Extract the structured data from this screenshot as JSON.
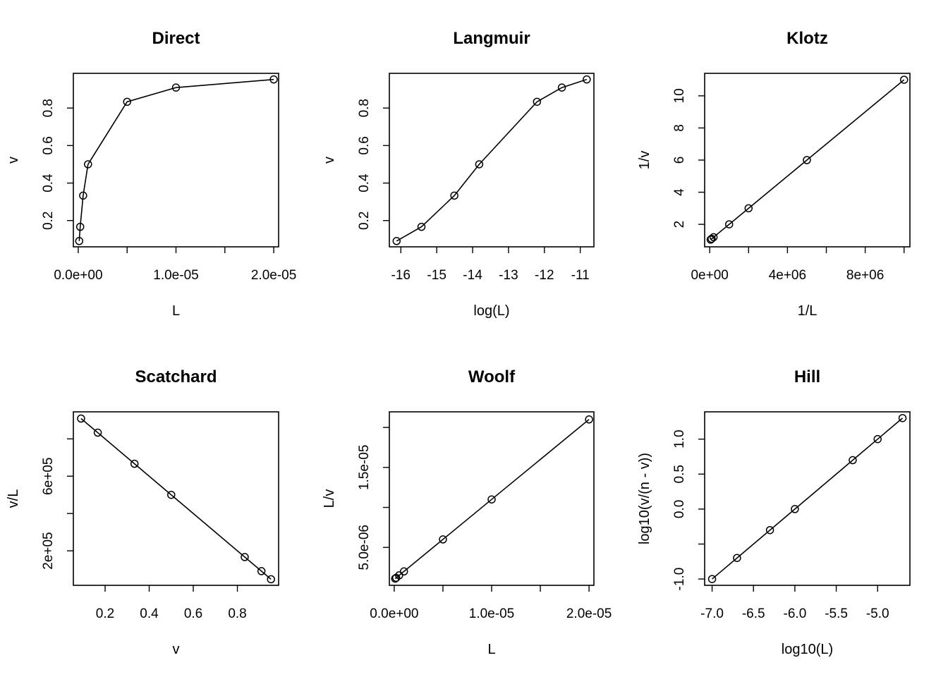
{
  "chart_data": [
    {
      "type": "line",
      "title": "Direct",
      "xlabel": "L",
      "ylabel": "v",
      "xlim": [
        -5e-07,
        2.05e-05
      ],
      "ylim": [
        0.06,
        0.985
      ],
      "xticks": [
        {
          "v": 0,
          "label": "0.0e+00"
        },
        {
          "v": 5e-06,
          "label": ""
        },
        {
          "v": 1e-05,
          "label": "1.0e-05"
        },
        {
          "v": 1.5e-05,
          "label": ""
        },
        {
          "v": 2e-05,
          "label": "2.0e-05"
        }
      ],
      "yticks": [
        {
          "v": 0.2,
          "label": "0.2"
        },
        {
          "v": 0.4,
          "label": "0.4"
        },
        {
          "v": 0.6,
          "label": "0.6"
        },
        {
          "v": 0.8,
          "label": "0.8"
        }
      ],
      "series": [
        {
          "x": [
            1e-07,
            2e-07,
            5e-07,
            1e-06,
            5e-06,
            1e-05,
            2e-05
          ],
          "y": [
            0.0909,
            0.1667,
            0.3333,
            0.5,
            0.8333,
            0.9091,
            0.9524
          ]
        }
      ]
    },
    {
      "type": "line",
      "title": "Langmuir",
      "xlabel": "log(L)",
      "ylabel": "v",
      "xlim": [
        -16.32,
        -10.62
      ],
      "ylim": [
        0.06,
        0.985
      ],
      "xticks": [
        {
          "v": -16,
          "label": "-16"
        },
        {
          "v": -15,
          "label": "-15"
        },
        {
          "v": -14,
          "label": "-14"
        },
        {
          "v": -13,
          "label": "-13"
        },
        {
          "v": -12,
          "label": "-12"
        },
        {
          "v": -11,
          "label": "-11"
        }
      ],
      "yticks": [
        {
          "v": 0.2,
          "label": "0.2"
        },
        {
          "v": 0.4,
          "label": "0.4"
        },
        {
          "v": 0.6,
          "label": "0.6"
        },
        {
          "v": 0.8,
          "label": "0.8"
        }
      ],
      "series": [
        {
          "x": [
            -16.118,
            -15.425,
            -14.509,
            -13.816,
            -12.206,
            -11.513,
            -10.82
          ],
          "y": [
            0.0909,
            0.1667,
            0.3333,
            0.5,
            0.8333,
            0.9091,
            0.9524
          ]
        }
      ]
    },
    {
      "type": "line",
      "title": "Klotz",
      "xlabel": "1/L",
      "ylabel": "1/v",
      "xlim": [
        -260000.0,
        10300000.0
      ],
      "ylim": [
        0.6,
        11.4
      ],
      "xticks": [
        {
          "v": 0,
          "label": "0e+00"
        },
        {
          "v": 2000000.0,
          "label": ""
        },
        {
          "v": 4000000.0,
          "label": "4e+06"
        },
        {
          "v": 6000000.0,
          "label": ""
        },
        {
          "v": 8000000.0,
          "label": "8e+06"
        },
        {
          "v": 10000000.0,
          "label": ""
        }
      ],
      "yticks": [
        {
          "v": 2,
          "label": "2"
        },
        {
          "v": 4,
          "label": "4"
        },
        {
          "v": 6,
          "label": "6"
        },
        {
          "v": 8,
          "label": "8"
        },
        {
          "v": 10,
          "label": "10"
        }
      ],
      "series": [
        {
          "x": [
            50000,
            100000,
            200000,
            1000000,
            2000000,
            5000000,
            10000000
          ],
          "y": [
            1.05,
            1.1,
            1.2,
            2,
            3,
            6,
            11
          ]
        }
      ]
    },
    {
      "type": "line",
      "title": "Scatchard",
      "xlabel": "v",
      "ylabel": "v/L",
      "xlim": [
        0.056,
        0.987
      ],
      "ylim": [
        15000,
        945000
      ],
      "xticks": [
        {
          "v": 0.2,
          "label": "0.2"
        },
        {
          "v": 0.4,
          "label": "0.4"
        },
        {
          "v": 0.6,
          "label": "0.6"
        },
        {
          "v": 0.8,
          "label": "0.8"
        }
      ],
      "yticks": [
        {
          "v": 200000,
          "label": "2e+05"
        },
        {
          "v": 400000,
          "label": ""
        },
        {
          "v": 600000,
          "label": "6e+05"
        },
        {
          "v": 800000,
          "label": ""
        }
      ],
      "series": [
        {
          "x": [
            0.0909,
            0.1667,
            0.3333,
            0.5,
            0.8333,
            0.9091,
            0.9524
          ],
          "y": [
            909090,
            833333,
            666667,
            500000,
            166667,
            90909,
            47619
          ]
        }
      ]
    },
    {
      "type": "line",
      "title": "Woolf",
      "xlabel": "L",
      "ylabel": "L/v",
      "xlim": [
        -5e-07,
        2.05e-05
      ],
      "ylim": [
        2.6e-07,
        2.195e-05
      ],
      "xticks": [
        {
          "v": 0,
          "label": "0.0e+00"
        },
        {
          "v": 5e-06,
          "label": ""
        },
        {
          "v": 1e-05,
          "label": "1.0e-05"
        },
        {
          "v": 1.5e-05,
          "label": ""
        },
        {
          "v": 2e-05,
          "label": "2.0e-05"
        }
      ],
      "yticks": [
        {
          "v": 5e-06,
          "label": "5.0e-06"
        },
        {
          "v": 1e-05,
          "label": ""
        },
        {
          "v": 1.5e-05,
          "label": "1.5e-05"
        },
        {
          "v": 2e-05,
          "label": ""
        }
      ],
      "series": [
        {
          "x": [
            1e-07,
            2e-07,
            5e-07,
            1e-06,
            5e-06,
            1e-05,
            2e-05
          ],
          "y": [
            1.1e-06,
            1.2e-06,
            1.5e-06,
            2e-06,
            6e-06,
            1.1e-05,
            2.1e-05
          ]
        }
      ]
    },
    {
      "type": "line",
      "title": "Hill",
      "xlabel": "log10(L)",
      "ylabel": "log10(v/(n - v))",
      "xlim": [
        -7.09,
        -4.61
      ],
      "ylim": [
        -1.09,
        1.39
      ],
      "xticks": [
        {
          "v": -7,
          "label": "-7.0"
        },
        {
          "v": -6.5,
          "label": "-6.5"
        },
        {
          "v": -6,
          "label": "-6.0"
        },
        {
          "v": -5.5,
          "label": "-5.5"
        },
        {
          "v": -5,
          "label": "-5.0"
        }
      ],
      "yticks": [
        {
          "v": -1,
          "label": "-1.0"
        },
        {
          "v": -0.5,
          "label": ""
        },
        {
          "v": 0,
          "label": "0.0"
        },
        {
          "v": 0.5,
          "label": "0.5"
        },
        {
          "v": 1,
          "label": "1.0"
        }
      ],
      "series": [
        {
          "x": [
            -7,
            -6.699,
            -6.301,
            -6,
            -5.301,
            -5,
            -4.699
          ],
          "y": [
            -1,
            -0.699,
            -0.301,
            0,
            0.699,
            1,
            1.301
          ]
        }
      ]
    }
  ]
}
